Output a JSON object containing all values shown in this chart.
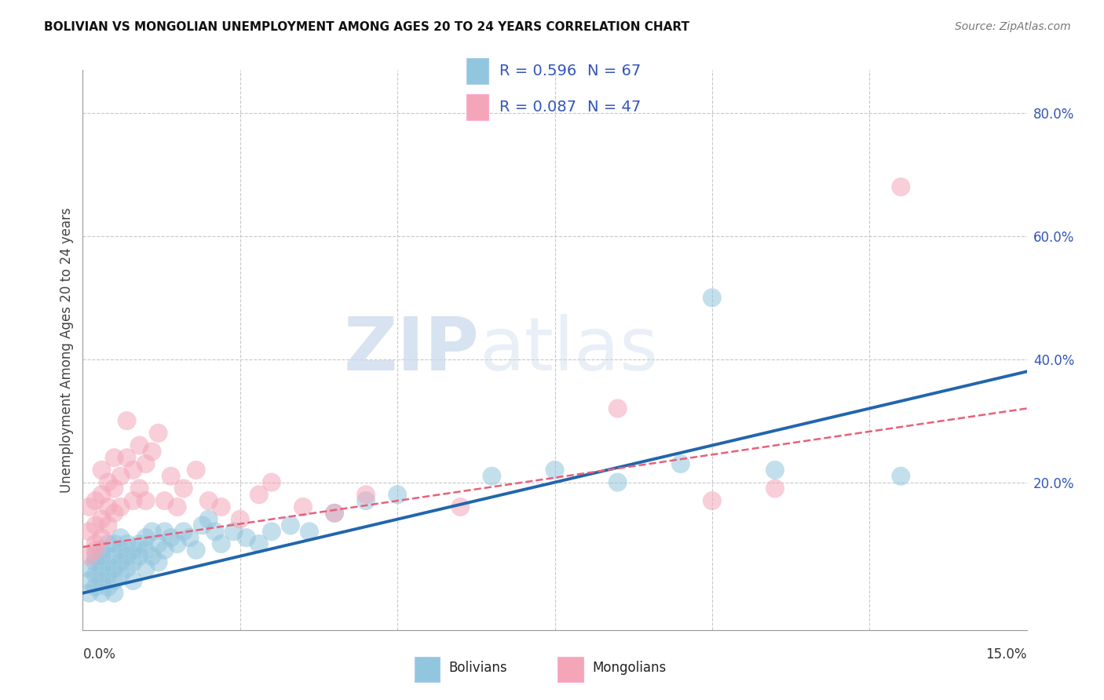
{
  "title": "BOLIVIAN VS MONGOLIAN UNEMPLOYMENT AMONG AGES 20 TO 24 YEARS CORRELATION CHART",
  "source": "Source: ZipAtlas.com",
  "ylabel": "Unemployment Among Ages 20 to 24 years",
  "right_yticks": [
    "20.0%",
    "40.0%",
    "60.0%",
    "80.0%"
  ],
  "right_ytick_vals": [
    0.2,
    0.4,
    0.6,
    0.8
  ],
  "xlim": [
    0.0,
    0.15
  ],
  "ylim": [
    -0.04,
    0.87
  ],
  "bolivians_R": 0.596,
  "bolivians_N": 67,
  "mongolians_R": 0.087,
  "mongolians_N": 47,
  "blue_color": "#92c5de",
  "pink_color": "#f4a6b8",
  "blue_line_color": "#2166ac",
  "pink_line_color": "#e8607a",
  "legend_text_color": "#3355bb",
  "watermark_zip": "ZIP",
  "watermark_atlas": "atlas",
  "bolivians_x": [
    0.001,
    0.001,
    0.001,
    0.002,
    0.002,
    0.002,
    0.002,
    0.003,
    0.003,
    0.003,
    0.003,
    0.003,
    0.004,
    0.004,
    0.004,
    0.004,
    0.005,
    0.005,
    0.005,
    0.005,
    0.005,
    0.006,
    0.006,
    0.006,
    0.006,
    0.007,
    0.007,
    0.007,
    0.008,
    0.008,
    0.008,
    0.009,
    0.009,
    0.01,
    0.01,
    0.01,
    0.011,
    0.011,
    0.012,
    0.012,
    0.013,
    0.013,
    0.014,
    0.015,
    0.016,
    0.017,
    0.018,
    0.019,
    0.02,
    0.021,
    0.022,
    0.024,
    0.026,
    0.028,
    0.03,
    0.033,
    0.036,
    0.04,
    0.045,
    0.05,
    0.065,
    0.075,
    0.085,
    0.095,
    0.1,
    0.11,
    0.13
  ],
  "bolivians_y": [
    0.04,
    0.06,
    0.02,
    0.05,
    0.07,
    0.03,
    0.08,
    0.06,
    0.04,
    0.08,
    0.02,
    0.09,
    0.05,
    0.07,
    0.03,
    0.1,
    0.06,
    0.08,
    0.04,
    0.1,
    0.02,
    0.07,
    0.09,
    0.05,
    0.11,
    0.08,
    0.06,
    0.1,
    0.07,
    0.09,
    0.04,
    0.1,
    0.08,
    0.09,
    0.11,
    0.06,
    0.08,
    0.12,
    0.1,
    0.07,
    0.09,
    0.12,
    0.11,
    0.1,
    0.12,
    0.11,
    0.09,
    0.13,
    0.14,
    0.12,
    0.1,
    0.12,
    0.11,
    0.1,
    0.12,
    0.13,
    0.12,
    0.15,
    0.17,
    0.18,
    0.21,
    0.22,
    0.2,
    0.23,
    0.5,
    0.22,
    0.21
  ],
  "mongolians_x": [
    0.001,
    0.001,
    0.001,
    0.002,
    0.002,
    0.002,
    0.002,
    0.003,
    0.003,
    0.003,
    0.003,
    0.004,
    0.004,
    0.004,
    0.005,
    0.005,
    0.005,
    0.006,
    0.006,
    0.007,
    0.007,
    0.008,
    0.008,
    0.009,
    0.009,
    0.01,
    0.01,
    0.011,
    0.012,
    0.013,
    0.014,
    0.015,
    0.016,
    0.018,
    0.02,
    0.022,
    0.025,
    0.028,
    0.03,
    0.035,
    0.04,
    0.045,
    0.06,
    0.085,
    0.1,
    0.11,
    0.13
  ],
  "mongolians_y": [
    0.12,
    0.08,
    0.16,
    0.13,
    0.1,
    0.17,
    0.09,
    0.14,
    0.11,
    0.18,
    0.22,
    0.13,
    0.16,
    0.2,
    0.15,
    0.19,
    0.24,
    0.16,
    0.21,
    0.24,
    0.3,
    0.17,
    0.22,
    0.26,
    0.19,
    0.17,
    0.23,
    0.25,
    0.28,
    0.17,
    0.21,
    0.16,
    0.19,
    0.22,
    0.17,
    0.16,
    0.14,
    0.18,
    0.2,
    0.16,
    0.15,
    0.18,
    0.16,
    0.32,
    0.17,
    0.19,
    0.68
  ],
  "blue_trend_x": [
    0.0,
    0.15
  ],
  "blue_trend_y": [
    0.02,
    0.38
  ],
  "pink_trend_x": [
    0.0,
    0.15
  ],
  "pink_trend_y": [
    0.095,
    0.32
  ],
  "title_fontsize": 11,
  "axis_fontsize": 12,
  "legend_fontsize": 14
}
